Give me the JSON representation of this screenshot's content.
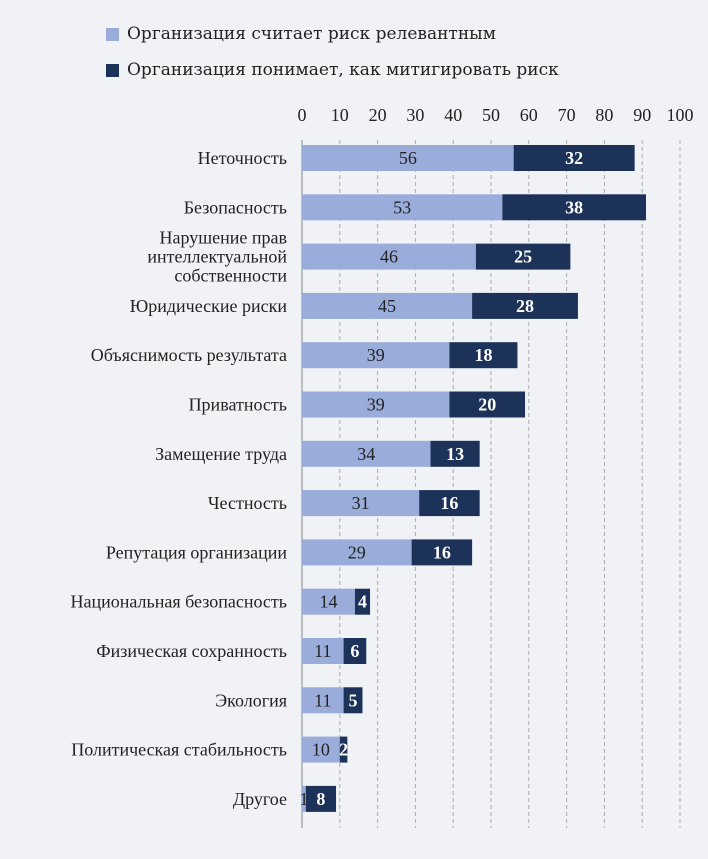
{
  "chart_data": {
    "type": "bar",
    "orientation": "horizontal",
    "stacked": true,
    "categories": [
      "Неточность",
      "Безопасность",
      "Нарушение прав\nинтеллектуальной\nсобственности",
      "Юридические риски",
      "Объяснимость результата",
      "Приватность",
      "Замещение труда",
      "Честность",
      "Репутация организации",
      "Национальная безопасность",
      "Физическая сохранность",
      "Экология",
      "Политическая стабильность",
      "Другое"
    ],
    "series": [
      {
        "name": "Организация считает риск релевантным",
        "color": "#9aacda",
        "values": [
          56,
          53,
          46,
          45,
          39,
          39,
          34,
          31,
          29,
          14,
          11,
          11,
          10,
          1
        ]
      },
      {
        "name": "Организация понимает, как митигировать риск",
        "color": "#1c3259",
        "values": [
          32,
          38,
          25,
          28,
          18,
          20,
          13,
          16,
          16,
          4,
          6,
          5,
          2,
          8
        ]
      }
    ],
    "xlim": [
      0,
      100
    ],
    "xticks": [
      0,
      10,
      20,
      30,
      40,
      50,
      60,
      70,
      80,
      90,
      100
    ],
    "grid": "vertical dashed",
    "legend": "top-left",
    "title": "",
    "xlabel": "",
    "ylabel": ""
  }
}
